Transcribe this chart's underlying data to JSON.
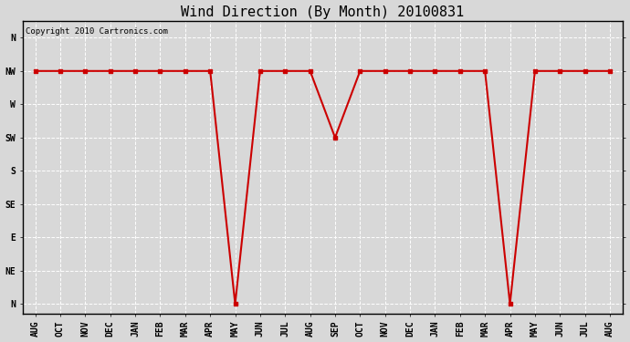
{
  "title": "Wind Direction (By Month) 20100831",
  "copyright": "Copyright 2010 Cartronics.com",
  "x_labels": [
    "AUG",
    "OCT",
    "NOV",
    "DEC",
    "JAN",
    "FEB",
    "MAR",
    "APR",
    "MAY",
    "JUN",
    "JUL",
    "AUG",
    "SEP",
    "OCT",
    "NOV",
    "DEC",
    "JAN",
    "FEB",
    "MAR",
    "APR",
    "MAY",
    "JUN",
    "JUL",
    "AUG"
  ],
  "y_tick_positions": [
    0,
    1,
    2,
    3,
    4,
    5,
    6,
    7,
    8
  ],
  "y_tick_labels": [
    "N",
    "NE",
    "E",
    "SE",
    "S",
    "SW",
    "W",
    "NW",
    "N"
  ],
  "data_values": [
    7,
    7,
    7,
    7,
    7,
    7,
    7,
    7,
    0,
    7,
    7,
    7,
    5,
    7,
    7,
    7,
    7,
    7,
    7,
    0,
    7,
    7,
    7,
    7
  ],
  "line_color": "#cc0000",
  "marker": "s",
  "marker_size": 3,
  "marker_linewidth": 1,
  "line_width": 1.5,
  "bg_color": "#d8d8d8",
  "plot_bg_color": "#d8d8d8",
  "grid_color": "#ffffff",
  "title_fontsize": 11,
  "copyright_fontsize": 6.5,
  "tick_fontsize": 7,
  "ylim_min": -0.3,
  "ylim_max": 8.5,
  "figwidth": 6.9,
  "figheight": 3.75,
  "dpi": 100
}
